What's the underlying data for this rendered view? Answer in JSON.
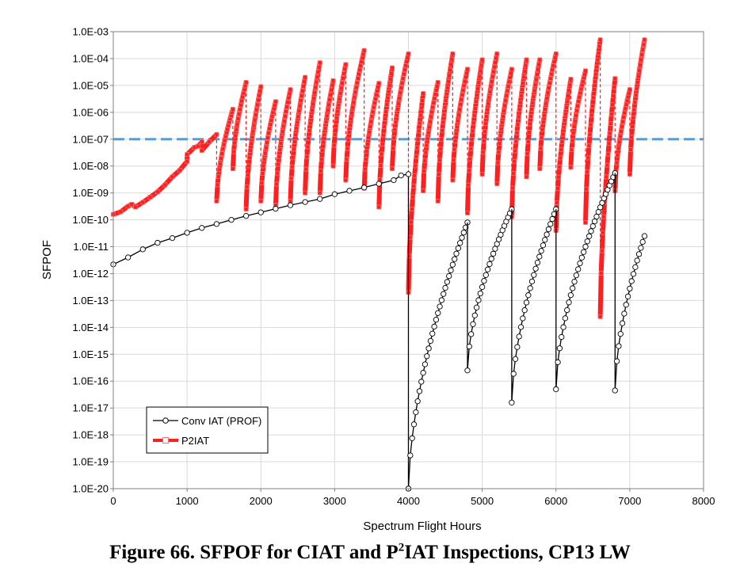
{
  "caption": {
    "prefix": "Figure 66. SFPOF for CIAT and P",
    "superscript": "2",
    "suffix": "IAT Inspections, CP13 LW"
  },
  "chart_data": {
    "type": "line",
    "title": "",
    "xlabel": "Spectrum Flight Hours",
    "ylabel": "SFPOF",
    "xlim": [
      0,
      8000
    ],
    "xticks": [
      0,
      1000,
      2000,
      3000,
      4000,
      5000,
      6000,
      7000,
      8000
    ],
    "yscale": "log",
    "ylim_exponent": [
      -20,
      -3
    ],
    "ytick_labels": [
      "1.0E-03",
      "1.0E-04",
      "1.0E-05",
      "1.0E-06",
      "1.0E-07",
      "1.0E-08",
      "1.0E-09",
      "1.0E-10",
      "1.0E-11",
      "1.0E-12",
      "1.0E-13",
      "1.0E-14",
      "1.0E-15",
      "1.0E-16",
      "1.0E-17",
      "1.0E-18",
      "1.0E-19",
      "1.0E-20"
    ],
    "grid": true,
    "legend_position": "bottom-left",
    "colors": {
      "conv": "#000000",
      "p2iat": "#ff1f1f",
      "p2iat_marker": "#ff7070",
      "threshold": "#5b9bd5",
      "grid": "#d9d9d9",
      "frame": "#808080"
    },
    "threshold": {
      "value": 1e-07
    },
    "series": [
      {
        "name": "Conv IAT (PROF)",
        "style": "line-circle-markers",
        "segments": [
          {
            "points": [
              [
                0,
                2.2e-12
              ],
              [
                200,
                4e-12
              ],
              [
                400,
                8e-12
              ],
              [
                600,
                1.4e-11
              ],
              [
                800,
                2.1e-11
              ],
              [
                1000,
                3.3e-11
              ],
              [
                1200,
                5e-11
              ],
              [
                1400,
                7e-11
              ],
              [
                1600,
                1e-10
              ],
              [
                1800,
                1.4e-10
              ],
              [
                2000,
                1.9e-10
              ],
              [
                2200,
                2.6e-10
              ],
              [
                2400,
                3.5e-10
              ],
              [
                2600,
                4.6e-10
              ],
              [
                2800,
                6e-10
              ],
              [
                3000,
                9e-10
              ],
              [
                3200,
                1.2e-09
              ],
              [
                3400,
                1.6e-09
              ],
              [
                3600,
                2.2e-09
              ],
              [
                3800,
                3e-09
              ],
              [
                3900,
                4.5e-09
              ],
              [
                4000,
                5e-09
              ],
              [
                4000,
                1e-20
              ]
            ]
          },
          {
            "from": [
              4000,
              1e-20
            ],
            "to": [
              4800,
              8e-11
            ]
          },
          {
            "from": [
              4800,
              2.5e-16
            ],
            "to": [
              5400,
              2.5e-10
            ]
          },
          {
            "from": [
              5400,
              1.6e-17
            ],
            "to": [
              6000,
              2.5e-10
            ]
          },
          {
            "from": [
              6000,
              5e-17
            ],
            "to": [
              6800,
              5.5e-09
            ]
          },
          {
            "from": [
              6800,
              4.5e-17
            ],
            "to": [
              7200,
              2.5e-11
            ]
          }
        ]
      },
      {
        "name": "P2IAT",
        "style": "thick-line-square-markers",
        "segments": [
          {
            "points": [
              [
                0,
                1.6e-10
              ],
              [
                100,
                2e-10
              ],
              [
                200,
                3.2e-10
              ],
              [
                250,
                3.8e-10
              ],
              [
                300,
                3e-10
              ],
              [
                400,
                4.5e-10
              ],
              [
                500,
                7e-10
              ],
              [
                600,
                1.1e-09
              ],
              [
                700,
                2e-09
              ],
              [
                800,
                4e-09
              ],
              [
                900,
                7e-09
              ],
              [
                1000,
                1.5e-08
              ],
              [
                1000,
                2.7e-08
              ],
              [
                1100,
                5e-08
              ],
              [
                1150,
                5.5e-08
              ],
              [
                1200,
                8e-08
              ],
              [
                1200,
                3.8e-08
              ],
              [
                1300,
                8e-08
              ],
              [
                1400,
                1.5e-07
              ]
            ]
          },
          {
            "from": [
              1400,
              5e-10
            ],
            "to": [
              1620,
              1.3e-06
            ]
          },
          {
            "from": [
              1620,
              8e-09
            ],
            "to": [
              1800,
              1.3e-05
            ]
          },
          {
            "from": [
              1800,
              2.5e-10
            ],
            "to": [
              2000,
              9e-06
            ]
          },
          {
            "from": [
              2000,
              5e-10
            ],
            "to": [
              2200,
              2.5e-06
            ]
          },
          {
            "from": [
              2200,
              3.5e-10
            ],
            "to": [
              2400,
              7e-06
            ]
          },
          {
            "from": [
              2400,
              5e-10
            ],
            "to": [
              2600,
              2e-05
            ]
          },
          {
            "from": [
              2600,
              1e-09
            ],
            "to": [
              2800,
              7e-05
            ]
          },
          {
            "from": [
              2800,
              1e-09
            ],
            "to": [
              2980,
              1.5e-05
            ]
          },
          {
            "from": [
              2980,
              1e-08
            ],
            "to": [
              3150,
              6e-05
            ]
          },
          {
            "from": [
              3150,
              3e-09
            ],
            "to": [
              3400,
              0.0002
            ]
          },
          {
            "from": [
              3400,
              1.5e-09
            ],
            "to": [
              3600,
              1.2e-05
            ]
          },
          {
            "from": [
              3600,
              3e-10
            ],
            "to": [
              3780,
              4.5e-05
            ]
          },
          {
            "from": [
              3780,
              8e-09
            ],
            "to": [
              4000,
              0.00015
            ]
          },
          {
            "from": [
              4000,
              2e-13
            ],
            "to": [
              4200,
              5e-06
            ]
          },
          {
            "from": [
              4200,
              1.2e-09
            ],
            "to": [
              4400,
              1.3e-05
            ]
          },
          {
            "from": [
              4400,
              5e-10
            ],
            "to": [
              4600,
              0.00015
            ]
          },
          {
            "from": [
              4600,
              3e-09
            ],
            "to": [
              4800,
              4e-05
            ]
          },
          {
            "from": [
              4800,
              1.8e-10
            ],
            "to": [
              5000,
              9e-05
            ]
          },
          {
            "from": [
              5000,
              5e-09
            ],
            "to": [
              5200,
              0.00015
            ]
          },
          {
            "from": [
              5200,
              2.2e-09
            ],
            "to": [
              5400,
              4e-05
            ]
          },
          {
            "from": [
              5400,
              1.3e-10
            ],
            "to": [
              5600,
              9e-05
            ]
          },
          {
            "from": [
              5600,
              4e-09
            ],
            "to": [
              5780,
              9e-05
            ]
          },
          {
            "from": [
              5780,
              8e-09
            ],
            "to": [
              6000,
              0.00015
            ]
          },
          {
            "from": [
              6000,
              4e-11
            ],
            "to": [
              6200,
              1.7e-05
            ]
          },
          {
            "from": [
              6200,
              9e-09
            ],
            "to": [
              6400,
              3.5e-05
            ]
          },
          {
            "from": [
              6400,
              8e-11
            ],
            "to": [
              6600,
              0.0005
            ]
          },
          {
            "from": [
              6600,
              2.5e-14
            ],
            "to": [
              6800,
              1.8e-05
            ]
          },
          {
            "from": [
              6800,
              1.2e-09
            ],
            "to": [
              7000,
              7e-06
            ]
          },
          {
            "from": [
              7000,
              5e-09
            ],
            "to": [
              7200,
              0.0005
            ]
          }
        ]
      }
    ]
  }
}
